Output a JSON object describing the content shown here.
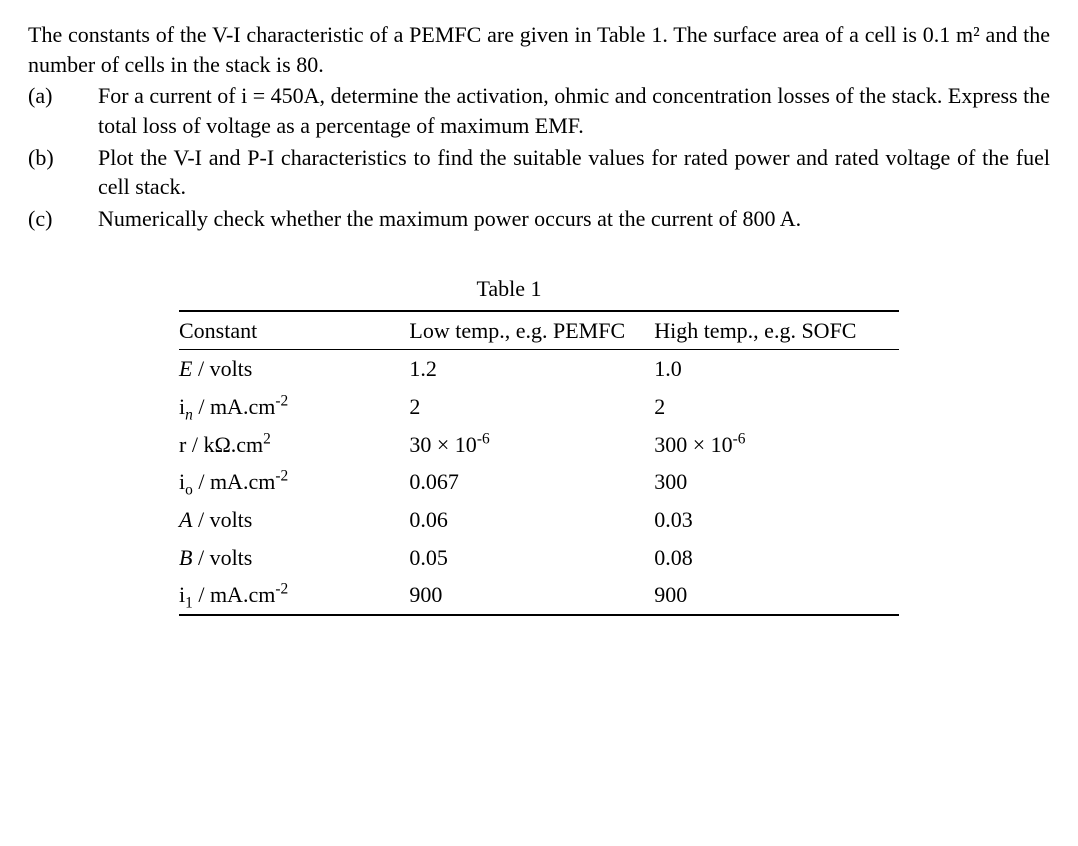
{
  "intro": "The constants of the V-I characteristic of a PEMFC are given in Table 1. The surface area of a cell is 0.1 m² and the number of cells in the stack is 80.",
  "questions": [
    {
      "label": "(a)",
      "text": "For a current of i = 450A, determine the activation, ohmic and concentration losses of the stack. Express the total loss of voltage as a percentage of maximum EMF."
    },
    {
      "label": "(b)",
      "text": "Plot the V-I and P-I characteristics to find the suitable values for rated power and rated voltage of the fuel cell stack."
    },
    {
      "label": "(c)",
      "text": "Numerically check whether the maximum power occurs at the current of 800 A."
    }
  ],
  "table": {
    "caption": "Table 1",
    "headers": [
      "Constant",
      "Low temp., e.g. PEMFC",
      "High temp., e.g. SOFC"
    ],
    "rows": [
      {
        "c0_html": "<i>E</i> / volts",
        "c1": "1.2",
        "c2": "1.0"
      },
      {
        "c0_html": "i<sub><i>n</i></sub> / mA.cm<sup>-2</sup>",
        "c1": "2",
        "c2": "2"
      },
      {
        "c0_html": "r / kΩ.cm<sup>2</sup>",
        "c1_html": "30 × 10<sup>-6</sup>",
        "c2_html": "300 × 10<sup>-6</sup>"
      },
      {
        "c0_html": "i<sub>o</sub> / mA.cm<sup>-2</sup>",
        "c1": "0.067",
        "c2": "300"
      },
      {
        "c0_html": "<i>A</i> / volts",
        "c1": "0.06",
        "c2": "0.03"
      },
      {
        "c0_html": "<i>B</i> / volts",
        "c1": "0.05",
        "c2": "0.08"
      },
      {
        "c0_html": "i<sub>1</sub> /  mA.cm<sup>-2</sup>",
        "c1": "900",
        "c2": "900"
      }
    ]
  }
}
